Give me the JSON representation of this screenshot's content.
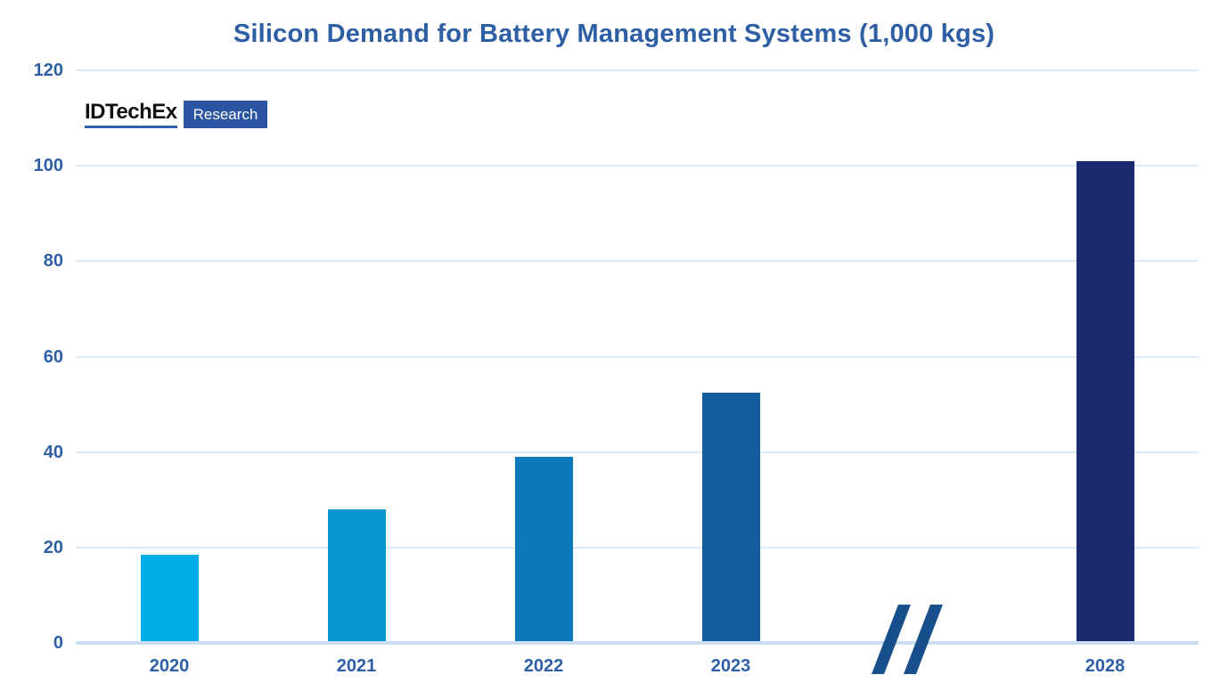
{
  "title": "Silicon Demand for Battery Management Systems (1,000 kgs)",
  "logo": {
    "brand": "IDTechEx",
    "badge": "Research"
  },
  "colors": {
    "background": "#FFFFFF",
    "title_text": "#2E5FA5",
    "axis_text": "#2E5FA5",
    "gridline": "#DCE9F7",
    "baseline": "#C8DCF2",
    "break_mark": "#174E8C",
    "logo_brand_text": "#111111",
    "logo_underline": "#2E62B1",
    "logo_badge_bg": "#2B55A3",
    "logo_badge_text": "#FFFFFF"
  },
  "chart_data": {
    "type": "bar",
    "title": "Silicon Demand for Battery Management Systems (1,000 kgs)",
    "xlabel": "",
    "ylabel": "",
    "categories": [
      "2020",
      "2021",
      "2022",
      "2023",
      "2028"
    ],
    "values": [
      18.5,
      28,
      39,
      52.5,
      101
    ],
    "bar_colors": [
      "#00ACE8",
      "#0894CE",
      "#0C79B8",
      "#135D9E",
      "#1B2A70"
    ],
    "ylim": [
      0,
      120
    ],
    "yticks": [
      0,
      20,
      40,
      60,
      80,
      100,
      120
    ],
    "grid": "horizontal gridlines only",
    "legend": "none",
    "axis_break": {
      "between": [
        "2023",
        "2028"
      ],
      "symbol": "//"
    },
    "slot_indices": [
      0,
      1,
      2,
      3,
      5
    ],
    "total_slots": 6,
    "break_slot": 4
  }
}
